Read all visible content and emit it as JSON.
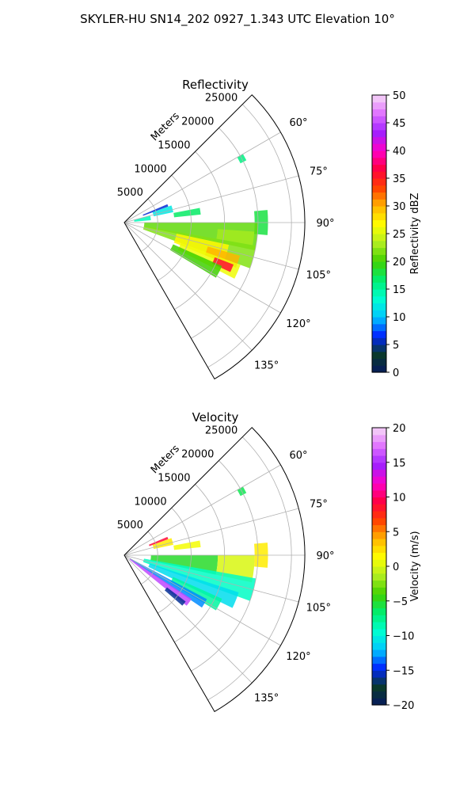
{
  "figure": {
    "title": "SKYLER-HU  SN14_202  0927_1.343 UTC Elevation 10°"
  },
  "chart_data": [
    {
      "type": "heatmap",
      "title": "Reflectivity",
      "projection": "polar-sector",
      "theta_range_deg": [
        45,
        150
      ],
      "theta_ticks": [
        "60°",
        "75°",
        "90°",
        "105°",
        "120°",
        "135°"
      ],
      "r_label": "Meters",
      "r_ticks": [
        "5000",
        "10000",
        "15000",
        "20000",
        "25000"
      ],
      "r_max": 27000,
      "grid": true,
      "colorbar": {
        "label": "Reflectivity dBZ",
        "range": [
          0,
          50
        ],
        "ticks": [
          "0",
          "5",
          "10",
          "15",
          "20",
          "25",
          "30",
          "35",
          "40",
          "45",
          "50"
        ],
        "stops": [
          "#061a5e",
          "#0a3a2a",
          "#0026ff",
          "#00c8ff",
          "#00ffd0",
          "#00ee70",
          "#40d000",
          "#b0ee20",
          "#ffff00",
          "#ffb400",
          "#ff4000",
          "#ff0040",
          "#ff00c8",
          "#a020ff",
          "#e070ff",
          "#f6d8f6"
        ]
      },
      "echo_regions": [
        {
          "theta": [
            60,
            63
          ],
          "r": [
            19500,
            20500
          ],
          "value": 16
        },
        {
          "theta": [
            85,
            95
          ],
          "r": [
            19500,
            21500
          ],
          "value": 18
        },
        {
          "theta": [
            67,
            70
          ],
          "r": [
            3000,
            7000
          ],
          "value": 6
        },
        {
          "theta": [
            70,
            78
          ],
          "r": [
            4500,
            7500
          ],
          "value": 12
        },
        {
          "theta": [
            79,
            84
          ],
          "r": [
            7500,
            11500
          ],
          "value": 17
        },
        {
          "theta": [
            75,
            85
          ],
          "r": [
            1500,
            4000
          ],
          "value": 14
        },
        {
          "theta": [
            90,
            102
          ],
          "r": [
            3000,
            20000
          ],
          "value": 21
        },
        {
          "theta": [
            94,
            100
          ],
          "r": [
            14000,
            19500
          ],
          "value": 23
        },
        {
          "theta": [
            100,
            110
          ],
          "r": [
            3000,
            20000
          ],
          "value": 22
        },
        {
          "theta": [
            102,
            112
          ],
          "r": [
            8000,
            16000
          ],
          "value": 27
        },
        {
          "theta": [
            106,
            112
          ],
          "r": [
            13000,
            18000
          ],
          "value": 30
        },
        {
          "theta": [
            110,
            117
          ],
          "r": [
            9000,
            18500
          ],
          "value": 26
        },
        {
          "theta": [
            111,
            115
          ],
          "r": [
            14500,
            17500
          ],
          "value": 36
        },
        {
          "theta": [
            114,
            121
          ],
          "r": [
            8000,
            16000
          ],
          "value": 20
        }
      ]
    },
    {
      "type": "heatmap",
      "title": "Velocity",
      "projection": "polar-sector",
      "theta_range_deg": [
        45,
        150
      ],
      "theta_ticks": [
        "60°",
        "75°",
        "90°",
        "105°",
        "120°",
        "135°"
      ],
      "r_label": "Meters",
      "r_ticks": [
        "5000",
        "10000",
        "15000",
        "20000",
        "25000"
      ],
      "r_max": 27000,
      "grid": true,
      "colorbar": {
        "label": "Velocity (m/s)",
        "range": [
          -20,
          20
        ],
        "ticks": [
          "−20",
          "−15",
          "−10",
          "−5",
          "0",
          "5",
          "10",
          "15",
          "20"
        ],
        "stops": [
          "#061a5e",
          "#0a3a2a",
          "#0026ff",
          "#00c8ff",
          "#00ffd0",
          "#00ee70",
          "#40d000",
          "#b0ee20",
          "#ffff00",
          "#ffb400",
          "#ff4000",
          "#ff0040",
          "#ff00c8",
          "#a020ff",
          "#e070ff",
          "#f6d8f6"
        ]
      },
      "echo_regions": [
        {
          "theta": [
            60,
            63
          ],
          "r": [
            19500,
            20500
          ],
          "value": -6
        },
        {
          "theta": [
            85,
            95
          ],
          "r": [
            19500,
            21500
          ],
          "value": 2
        },
        {
          "theta": [
            67,
            70
          ],
          "r": [
            4000,
            7000
          ],
          "value": 9
        },
        {
          "theta": [
            70,
            78
          ],
          "r": [
            4500,
            7500
          ],
          "value": 2
        },
        {
          "theta": [
            79,
            84
          ],
          "r": [
            7500,
            11500
          ],
          "value": 1
        },
        {
          "theta": [
            90,
            102
          ],
          "r": [
            4000,
            14000
          ],
          "value": -5
        },
        {
          "theta": [
            90,
            102
          ],
          "r": [
            14000,
            19500
          ],
          "value": 0
        },
        {
          "theta": [
            100,
            110
          ],
          "r": [
            3000,
            20000
          ],
          "value": -9
        },
        {
          "theta": [
            108,
            116
          ],
          "r": [
            4000,
            18000
          ],
          "value": -11
        },
        {
          "theta": [
            114,
            121
          ],
          "r": [
            8000,
            16000
          ],
          "value": -8
        },
        {
          "theta": [
            118,
            124
          ],
          "r": [
            1000,
            14000
          ],
          "value": -13
        },
        {
          "theta": [
            123,
            129
          ],
          "r": [
            1000,
            12000
          ],
          "value": 16
        },
        {
          "theta": [
            127,
            131
          ],
          "r": [
            8000,
            11500
          ],
          "value": -16
        }
      ]
    }
  ]
}
